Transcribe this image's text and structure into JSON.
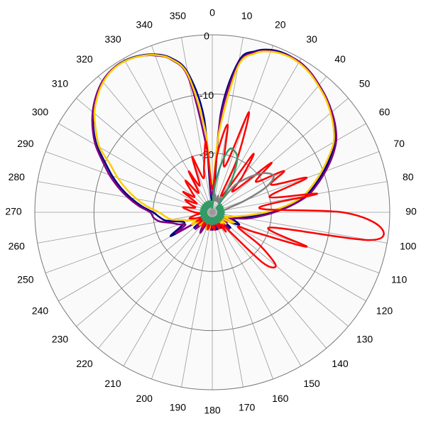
{
  "chart_data": {
    "type": "polar",
    "theta": [
      0,
      5,
      10,
      15,
      20,
      25,
      30,
      35,
      40,
      45,
      50,
      55,
      60,
      65,
      70,
      75,
      80,
      85,
      90,
      95,
      100,
      105,
      110,
      115,
      120,
      125,
      130,
      135,
      140,
      145,
      150,
      155,
      160,
      165,
      170,
      175,
      180,
      185,
      190,
      195,
      200,
      205,
      210,
      215,
      220,
      225,
      230,
      235,
      240,
      245,
      250,
      255,
      260,
      265,
      270,
      275,
      280,
      285,
      290,
      295,
      300,
      305,
      310,
      315,
      320,
      325,
      330,
      335,
      340,
      345,
      350,
      355
    ],
    "thetaticks": [
      0,
      10,
      20,
      30,
      40,
      50,
      60,
      70,
      80,
      90,
      100,
      110,
      120,
      130,
      140,
      150,
      160,
      170,
      180,
      190,
      200,
      210,
      220,
      230,
      240,
      250,
      260,
      270,
      280,
      290,
      300,
      310,
      320,
      330,
      340,
      350
    ],
    "rlim": [
      -30,
      0
    ],
    "rticks": [
      -20,
      -10,
      0
    ],
    "series": [
      {
        "color": "#000080",
        "values": [
          -28,
          -13,
          -4,
          -1.8,
          -0.8,
          -0.5,
          -0.7,
          -1.2,
          -2,
          -2.8,
          -3.8,
          -4.8,
          -6,
          -8,
          -10,
          -12,
          -14,
          -17,
          -20,
          -23,
          -25,
          -27,
          -26,
          -25,
          -27,
          -28,
          -26,
          -27,
          -29,
          -28,
          -27,
          -29,
          -28,
          -27,
          -29,
          -28,
          -27,
          -28,
          -29,
          -27,
          -28,
          -29,
          -27,
          -28,
          -29,
          -27,
          -26,
          -28,
          -22,
          -24,
          -25,
          -24,
          -22,
          -21,
          -20,
          -18,
          -16,
          -14,
          -12,
          -10,
          -7.5,
          -5.5,
          -3.8,
          -2.3,
          -1.2,
          -0.5,
          -0.4,
          -0.8,
          -1.6,
          -3,
          -6,
          -14
        ]
      },
      {
        "color": "#800080",
        "values": [
          -27,
          -14,
          -4.5,
          -2,
          -1,
          -0.6,
          -0.6,
          -1.1,
          -1.9,
          -2.7,
          -3.6,
          -4.6,
          -5.8,
          -7.6,
          -9.6,
          -11.6,
          -13.6,
          -16.5,
          -19.5,
          -22,
          -24,
          -26,
          -27,
          -26,
          -28,
          -27,
          -28,
          -26,
          -28,
          -27,
          -29,
          -28,
          -27,
          -28,
          -27,
          -29,
          -28,
          -27,
          -28,
          -29,
          -27,
          -28,
          -26,
          -27,
          -28,
          -26,
          -27,
          -28,
          -23,
          -25,
          -24,
          -23,
          -21,
          -20,
          -19.5,
          -17.5,
          -15.5,
          -13.5,
          -11.5,
          -9.5,
          -7.2,
          -5.3,
          -3.6,
          -2.2,
          -1.1,
          -0.5,
          -0.5,
          -0.9,
          -1.8,
          -3.3,
          -7,
          -19
        ]
      },
      {
        "color": "#ffcc00",
        "values": [
          -25,
          -16,
          -5,
          -2.2,
          -1.1,
          -0.7,
          -0.8,
          -1.3,
          -2.1,
          -2.9,
          -3.9,
          -5,
          -6.3,
          -8.4,
          -10.5,
          -12.5,
          -14.5,
          -17.5,
          -21,
          -24,
          -26,
          -27,
          -28,
          -26,
          -27,
          -29,
          -27,
          -28,
          -27,
          -28,
          -29,
          -27,
          -28,
          -29,
          -28,
          -27,
          -28,
          -29,
          -27,
          -28,
          -27,
          -29,
          -28,
          -27,
          -28,
          -27,
          -28,
          -27,
          -26,
          -27,
          -26,
          -25,
          -23,
          -22,
          -21,
          -19,
          -17,
          -15,
          -13,
          -11,
          -8,
          -6,
          -4,
          -2.5,
          -1.3,
          -0.6,
          -0.5,
          -0.9,
          -1.7,
          -3.2,
          -6.5,
          -16
        ]
      },
      {
        "color": "#ff0000",
        "values": [
          -26,
          -20,
          -15,
          -22,
          -12,
          -20,
          -27,
          -18,
          -22,
          -25,
          -17,
          -21,
          -16,
          -19,
          -13,
          -20,
          -12,
          -22,
          -8,
          -1.5,
          -3,
          -20,
          -13,
          -22,
          -25,
          -20,
          -16,
          -18,
          -27,
          -26,
          -28,
          -27,
          -28,
          -29,
          -28,
          -27,
          -28,
          -29,
          -28,
          -27,
          -28,
          -29,
          -28,
          -27,
          -28,
          -29,
          -27,
          -28,
          -27,
          -28,
          -27,
          -26,
          -27,
          -28,
          -27,
          -26,
          -25,
          -27,
          -26,
          -25,
          -27,
          -24,
          -26,
          -25,
          -23,
          -26,
          -22,
          -25,
          -20,
          -24,
          -22,
          -18
        ]
      },
      {
        "color": "#808080",
        "values": [
          -29,
          -28,
          -27,
          -28,
          -27,
          -28,
          -27,
          -28,
          -24,
          -22,
          -20,
          -18.5,
          -18,
          -20,
          -24,
          -27,
          -28,
          -29,
          -28,
          -29,
          -28,
          -29,
          -28,
          -29,
          -28,
          -29,
          -28,
          -29,
          -28,
          -29,
          -28,
          -29,
          -28,
          -29,
          -28,
          -29,
          -28,
          -29,
          -28,
          -29,
          -28,
          -29,
          -28,
          -29,
          -28,
          -29,
          -28,
          -29,
          -28,
          -29,
          -28,
          -29,
          -28,
          -29,
          -28,
          -29,
          -28,
          -29,
          -28,
          -29,
          -28,
          -29,
          -28,
          -29,
          -28,
          -29,
          -28,
          -29,
          -28,
          -29,
          -28,
          -29
        ]
      },
      {
        "color": "#339966",
        "values": [
          -29,
          -26,
          -22,
          -19,
          -19,
          -20,
          -23,
          -26,
          -28,
          -29,
          -28,
          -29,
          -28,
          -29,
          -28,
          -29,
          -28,
          -29,
          -28,
          -29,
          -28,
          -29,
          -28,
          -29,
          -28,
          -29,
          -28,
          -29,
          -28,
          -29,
          -28,
          -29,
          -28,
          -29,
          -28,
          -29,
          -28,
          -29,
          -28,
          -29,
          -28,
          -29,
          -28,
          -29,
          -28,
          -29,
          -28,
          -29,
          -28,
          -29,
          -28,
          -29,
          -28,
          -29,
          -28,
          -29,
          -28,
          -29,
          -28,
          -29,
          -28,
          -29,
          -28,
          -29,
          -28,
          -29,
          -28,
          -29,
          -28,
          -29,
          -28,
          -29
        ]
      }
    ],
    "grid": true
  }
}
